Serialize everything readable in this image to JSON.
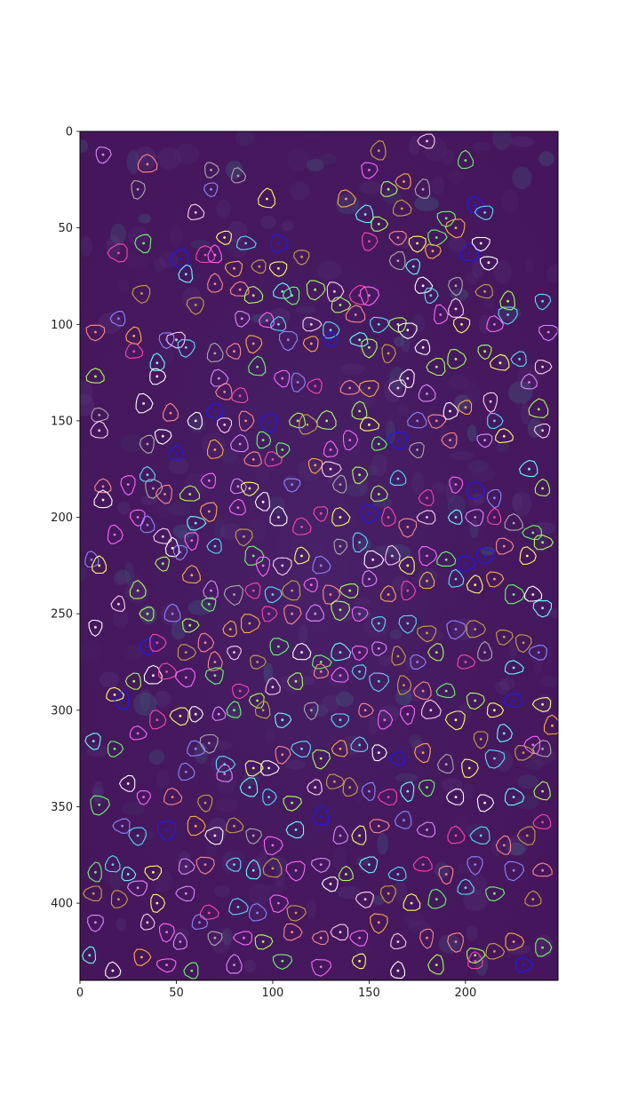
{
  "chart_data": {
    "type": "scatter",
    "title": "",
    "xlabel": "",
    "ylabel": "",
    "xlim": [
      0,
      248
    ],
    "ylim": [
      440,
      0
    ],
    "y_axis_inverted": true,
    "x_ticks": [
      0,
      50,
      100,
      150,
      200
    ],
    "y_ticks": [
      0,
      50,
      100,
      150,
      200,
      250,
      300,
      350,
      400
    ],
    "grid": false,
    "legend": "none",
    "background_image": "purple fluorescence microscopy field",
    "background_color": "#46165c",
    "marker": "cell contour with center dot",
    "contour_palette": [
      "#ff66ff",
      "#66ff66",
      "#ffff66",
      "#66ffff",
      "#ff8888",
      "#8888ff",
      "#ffffff",
      "#ffaa44",
      "#aaff55",
      "#dd88ff",
      "#aaaaaa",
      "#1a1aff",
      "#ff44aa",
      "#55ddff",
      "#c8a040",
      "#ffccee"
    ],
    "points": [
      [
        12,
        12
      ],
      [
        35,
        17
      ],
      [
        68,
        20
      ],
      [
        82,
        23
      ],
      [
        97,
        35
      ],
      [
        30,
        30
      ],
      [
        68,
        30
      ],
      [
        150,
        20
      ],
      [
        155,
        10
      ],
      [
        180,
        5
      ],
      [
        200,
        15
      ],
      [
        60,
        42
      ],
      [
        138,
        35
      ],
      [
        160,
        30
      ],
      [
        168,
        26
      ],
      [
        178,
        30
      ],
      [
        148,
        43
      ],
      [
        155,
        48
      ],
      [
        167,
        40
      ],
      [
        190,
        45
      ],
      [
        205,
        38
      ],
      [
        210,
        42
      ],
      [
        195,
        50
      ],
      [
        33,
        58
      ],
      [
        75,
        55
      ],
      [
        86,
        58
      ],
      [
        103,
        58
      ],
      [
        150,
        57
      ],
      [
        165,
        55
      ],
      [
        175,
        58
      ],
      [
        185,
        55
      ],
      [
        202,
        63
      ],
      [
        208,
        58
      ],
      [
        212,
        68
      ],
      [
        20,
        63
      ],
      [
        52,
        66
      ],
      [
        65,
        64
      ],
      [
        70,
        64
      ],
      [
        55,
        74
      ],
      [
        80,
        71
      ],
      [
        93,
        70
      ],
      [
        103,
        71
      ],
      [
        115,
        65
      ],
      [
        165,
        67
      ],
      [
        173,
        70
      ],
      [
        183,
        62
      ],
      [
        32,
        84
      ],
      [
        60,
        90
      ],
      [
        70,
        79
      ],
      [
        83,
        82
      ],
      [
        90,
        85
      ],
      [
        105,
        83
      ],
      [
        110,
        85
      ],
      [
        122,
        82
      ],
      [
        132,
        83
      ],
      [
        145,
        85
      ],
      [
        150,
        85
      ],
      [
        178,
        80
      ],
      [
        182,
        85
      ],
      [
        195,
        80
      ],
      [
        210,
        83
      ],
      [
        222,
        88
      ],
      [
        240,
        88
      ],
      [
        20,
        97
      ],
      [
        28,
        106
      ],
      [
        45,
        108
      ],
      [
        50,
        108
      ],
      [
        55,
        112
      ],
      [
        70,
        115
      ],
      [
        84,
        97
      ],
      [
        97,
        98
      ],
      [
        103,
        100
      ],
      [
        120,
        100
      ],
      [
        130,
        103
      ],
      [
        135,
        90
      ],
      [
        143,
        95
      ],
      [
        155,
        100
      ],
      [
        165,
        100
      ],
      [
        170,
        103
      ],
      [
        187,
        95
      ],
      [
        195,
        92
      ],
      [
        198,
        100
      ],
      [
        215,
        100
      ],
      [
        222,
        95
      ],
      [
        8,
        104
      ],
      [
        28,
        114
      ],
      [
        40,
        120
      ],
      [
        80,
        114
      ],
      [
        90,
        110
      ],
      [
        108,
        108
      ],
      [
        120,
        110
      ],
      [
        130,
        108
      ],
      [
        145,
        108
      ],
      [
        150,
        112
      ],
      [
        160,
        115
      ],
      [
        178,
        112
      ],
      [
        185,
        122
      ],
      [
        195,
        118
      ],
      [
        210,
        114
      ],
      [
        218,
        120
      ],
      [
        228,
        118
      ],
      [
        240,
        122
      ],
      [
        243,
        104
      ],
      [
        8,
        127
      ],
      [
        40,
        127
      ],
      [
        72,
        128
      ],
      [
        75,
        135
      ],
      [
        83,
        137
      ],
      [
        92,
        122
      ],
      [
        105,
        128
      ],
      [
        113,
        130
      ],
      [
        122,
        132
      ],
      [
        140,
        133
      ],
      [
        150,
        133
      ],
      [
        165,
        133
      ],
      [
        170,
        128
      ],
      [
        180,
        136
      ],
      [
        200,
        143
      ],
      [
        213,
        140
      ],
      [
        233,
        130
      ],
      [
        238,
        144
      ],
      [
        10,
        147
      ],
      [
        10,
        155
      ],
      [
        33,
        141
      ],
      [
        47,
        146
      ],
      [
        60,
        150
      ],
      [
        70,
        145
      ],
      [
        75,
        152
      ],
      [
        86,
        150
      ],
      [
        98,
        151
      ],
      [
        113,
        150
      ],
      [
        128,
        150
      ],
      [
        145,
        145
      ],
      [
        150,
        152
      ],
      [
        175,
        150
      ],
      [
        185,
        150
      ],
      [
        192,
        145
      ],
      [
        215,
        150
      ],
      [
        240,
        155
      ],
      [
        35,
        162
      ],
      [
        43,
        158
      ],
      [
        50,
        167
      ],
      [
        70,
        165
      ],
      [
        83,
        162
      ],
      [
        95,
        160
      ],
      [
        105,
        165
      ],
      [
        118,
        152
      ],
      [
        130,
        165
      ],
      [
        140,
        160
      ],
      [
        155,
        162
      ],
      [
        165,
        160
      ],
      [
        175,
        165
      ],
      [
        192,
        160
      ],
      [
        210,
        160
      ],
      [
        220,
        158
      ],
      [
        12,
        184
      ],
      [
        12,
        191
      ],
      [
        25,
        183
      ],
      [
        35,
        178
      ],
      [
        38,
        185
      ],
      [
        44,
        188
      ],
      [
        57,
        188
      ],
      [
        67,
        181
      ],
      [
        82,
        184
      ],
      [
        90,
        170
      ],
      [
        100,
        170
      ],
      [
        110,
        183
      ],
      [
        122,
        173
      ],
      [
        130,
        175
      ],
      [
        135,
        183
      ],
      [
        145,
        178
      ],
      [
        155,
        188
      ],
      [
        165,
        180
      ],
      [
        180,
        190
      ],
      [
        195,
        183
      ],
      [
        205,
        186
      ],
      [
        215,
        190
      ],
      [
        233,
        175
      ],
      [
        240,
        185
      ],
      [
        30,
        200
      ],
      [
        35,
        204
      ],
      [
        43,
        210
      ],
      [
        60,
        203
      ],
      [
        67,
        197
      ],
      [
        82,
        195
      ],
      [
        88,
        185
      ],
      [
        95,
        192
      ],
      [
        103,
        200
      ],
      [
        115,
        205
      ],
      [
        125,
        198
      ],
      [
        135,
        200
      ],
      [
        150,
        198
      ],
      [
        160,
        200
      ],
      [
        170,
        205
      ],
      [
        180,
        200
      ],
      [
        195,
        200
      ],
      [
        205,
        200
      ],
      [
        215,
        200
      ],
      [
        225,
        203
      ],
      [
        235,
        208
      ],
      [
        6,
        222
      ],
      [
        18,
        209
      ],
      [
        48,
        216
      ],
      [
        52,
        218
      ],
      [
        58,
        212
      ],
      [
        70,
        215
      ],
      [
        85,
        210
      ],
      [
        90,
        220
      ],
      [
        95,
        225
      ],
      [
        105,
        225
      ],
      [
        115,
        220
      ],
      [
        125,
        225
      ],
      [
        135,
        215
      ],
      [
        145,
        213
      ],
      [
        152,
        222
      ],
      [
        162,
        220
      ],
      [
        170,
        225
      ],
      [
        180,
        220
      ],
      [
        190,
        222
      ],
      [
        200,
        224
      ],
      [
        210,
        220
      ],
      [
        220,
        215
      ],
      [
        232,
        220
      ],
      [
        240,
        213
      ],
      [
        10,
        225
      ],
      [
        30,
        238
      ],
      [
        43,
        224
      ],
      [
        58,
        230
      ],
      [
        68,
        238
      ],
      [
        80,
        240
      ],
      [
        90,
        238
      ],
      [
        100,
        240
      ],
      [
        110,
        238
      ],
      [
        120,
        235
      ],
      [
        130,
        240
      ],
      [
        140,
        238
      ],
      [
        150,
        232
      ],
      [
        160,
        240
      ],
      [
        170,
        238
      ],
      [
        180,
        233
      ],
      [
        195,
        232
      ],
      [
        205,
        235
      ],
      [
        215,
        232
      ],
      [
        225,
        240
      ],
      [
        235,
        240
      ],
      [
        8,
        257
      ],
      [
        20,
        245
      ],
      [
        35,
        250
      ],
      [
        48,
        250
      ],
      [
        57,
        256
      ],
      [
        67,
        245
      ],
      [
        78,
        258
      ],
      [
        88,
        255
      ],
      [
        98,
        250
      ],
      [
        110,
        250
      ],
      [
        122,
        250
      ],
      [
        135,
        248
      ],
      [
        145,
        250
      ],
      [
        155,
        255
      ],
      [
        170,
        255
      ],
      [
        180,
        260
      ],
      [
        195,
        258
      ],
      [
        205,
        258
      ],
      [
        220,
        262
      ],
      [
        230,
        265
      ],
      [
        240,
        247
      ],
      [
        35,
        267
      ],
      [
        40,
        265
      ],
      [
        55,
        270
      ],
      [
        65,
        265
      ],
      [
        70,
        275
      ],
      [
        80,
        270
      ],
      [
        92,
        275
      ],
      [
        103,
        267
      ],
      [
        115,
        270
      ],
      [
        125,
        275
      ],
      [
        135,
        270
      ],
      [
        145,
        270
      ],
      [
        155,
        268
      ],
      [
        165,
        272
      ],
      [
        175,
        275
      ],
      [
        185,
        270
      ],
      [
        200,
        275
      ],
      [
        210,
        270
      ],
      [
        225,
        278
      ],
      [
        238,
        270
      ],
      [
        28,
        285
      ],
      [
        38,
        282
      ],
      [
        45,
        280
      ],
      [
        55,
        283
      ],
      [
        70,
        282
      ],
      [
        83,
        290
      ],
      [
        92,
        295
      ],
      [
        100,
        288
      ],
      [
        112,
        285
      ],
      [
        125,
        280
      ],
      [
        135,
        282
      ],
      [
        145,
        280
      ],
      [
        155,
        285
      ],
      [
        168,
        287
      ],
      [
        178,
        290
      ],
      [
        190,
        290
      ],
      [
        205,
        295
      ],
      [
        215,
        300
      ],
      [
        225,
        295
      ],
      [
        240,
        297
      ],
      [
        18,
        292
      ],
      [
        22,
        295
      ],
      [
        30,
        312
      ],
      [
        40,
        305
      ],
      [
        52,
        303
      ],
      [
        60,
        302
      ],
      [
        72,
        302
      ],
      [
        80,
        300
      ],
      [
        95,
        300
      ],
      [
        105,
        305
      ],
      [
        120,
        300
      ],
      [
        135,
        305
      ],
      [
        148,
        300
      ],
      [
        158,
        305
      ],
      [
        170,
        302
      ],
      [
        182,
        300
      ],
      [
        195,
        305
      ],
      [
        208,
        315
      ],
      [
        220,
        312
      ],
      [
        235,
        318
      ],
      [
        245,
        308
      ],
      [
        7,
        316
      ],
      [
        18,
        320
      ],
      [
        60,
        320
      ],
      [
        67,
        317
      ],
      [
        75,
        328
      ],
      [
        90,
        330
      ],
      [
        98,
        330
      ],
      [
        105,
        323
      ],
      [
        115,
        320
      ],
      [
        125,
        325
      ],
      [
        135,
        320
      ],
      [
        145,
        318
      ],
      [
        155,
        322
      ],
      [
        165,
        325
      ],
      [
        178,
        322
      ],
      [
        190,
        328
      ],
      [
        202,
        330
      ],
      [
        215,
        325
      ],
      [
        230,
        322
      ],
      [
        240,
        320
      ],
      [
        10,
        349
      ],
      [
        25,
        338
      ],
      [
        33,
        345
      ],
      [
        48,
        345
      ],
      [
        55,
        332
      ],
      [
        65,
        348
      ],
      [
        75,
        333
      ],
      [
        88,
        340
      ],
      [
        98,
        345
      ],
      [
        110,
        348
      ],
      [
        122,
        340
      ],
      [
        132,
        337
      ],
      [
        140,
        340
      ],
      [
        150,
        342
      ],
      [
        160,
        345
      ],
      [
        170,
        342
      ],
      [
        180,
        340
      ],
      [
        195,
        345
      ],
      [
        210,
        348
      ],
      [
        225,
        345
      ],
      [
        240,
        342
      ],
      [
        22,
        360
      ],
      [
        30,
        365
      ],
      [
        45,
        362
      ],
      [
        60,
        360
      ],
      [
        70,
        365
      ],
      [
        80,
        360
      ],
      [
        90,
        365
      ],
      [
        100,
        370
      ],
      [
        112,
        362
      ],
      [
        125,
        355
      ],
      [
        135,
        365
      ],
      [
        145,
        365
      ],
      [
        155,
        360
      ],
      [
        168,
        357
      ],
      [
        180,
        362
      ],
      [
        195,
        365
      ],
      [
        208,
        365
      ],
      [
        220,
        370
      ],
      [
        232,
        365
      ],
      [
        240,
        358
      ],
      [
        8,
        384
      ],
      [
        17,
        380
      ],
      [
        25,
        385
      ],
      [
        38,
        384
      ],
      [
        55,
        381
      ],
      [
        65,
        380
      ],
      [
        80,
        380
      ],
      [
        90,
        383
      ],
      [
        100,
        382
      ],
      [
        112,
        383
      ],
      [
        125,
        380
      ],
      [
        138,
        385
      ],
      [
        150,
        380
      ],
      [
        165,
        385
      ],
      [
        178,
        380
      ],
      [
        190,
        385
      ],
      [
        205,
        380
      ],
      [
        225,
        383
      ],
      [
        240,
        383
      ],
      [
        7,
        395
      ],
      [
        20,
        398
      ],
      [
        30,
        392
      ],
      [
        40,
        400
      ],
      [
        55,
        395
      ],
      [
        67,
        405
      ],
      [
        82,
        402
      ],
      [
        92,
        405
      ],
      [
        103,
        400
      ],
      [
        112,
        405
      ],
      [
        130,
        390
      ],
      [
        148,
        398
      ],
      [
        160,
        395
      ],
      [
        172,
        400
      ],
      [
        185,
        398
      ],
      [
        200,
        392
      ],
      [
        215,
        395
      ],
      [
        235,
        398
      ],
      [
        8,
        410
      ],
      [
        35,
        410
      ],
      [
        45,
        415
      ],
      [
        52,
        420
      ],
      [
        62,
        410
      ],
      [
        70,
        418
      ],
      [
        85,
        418
      ],
      [
        95,
        420
      ],
      [
        110,
        415
      ],
      [
        125,
        418
      ],
      [
        135,
        415
      ],
      [
        145,
        418
      ],
      [
        155,
        410
      ],
      [
        165,
        420
      ],
      [
        180,
        418
      ],
      [
        195,
        420
      ],
      [
        205,
        427
      ],
      [
        215,
        425
      ],
      [
        225,
        420
      ],
      [
        240,
        423
      ],
      [
        5,
        427
      ],
      [
        17,
        435
      ],
      [
        32,
        428
      ],
      [
        45,
        432
      ],
      [
        58,
        435
      ],
      [
        80,
        432
      ],
      [
        105,
        430
      ],
      [
        125,
        433
      ],
      [
        145,
        430
      ],
      [
        165,
        435
      ],
      [
        185,
        432
      ],
      [
        205,
        430
      ],
      [
        230,
        432
      ]
    ]
  }
}
